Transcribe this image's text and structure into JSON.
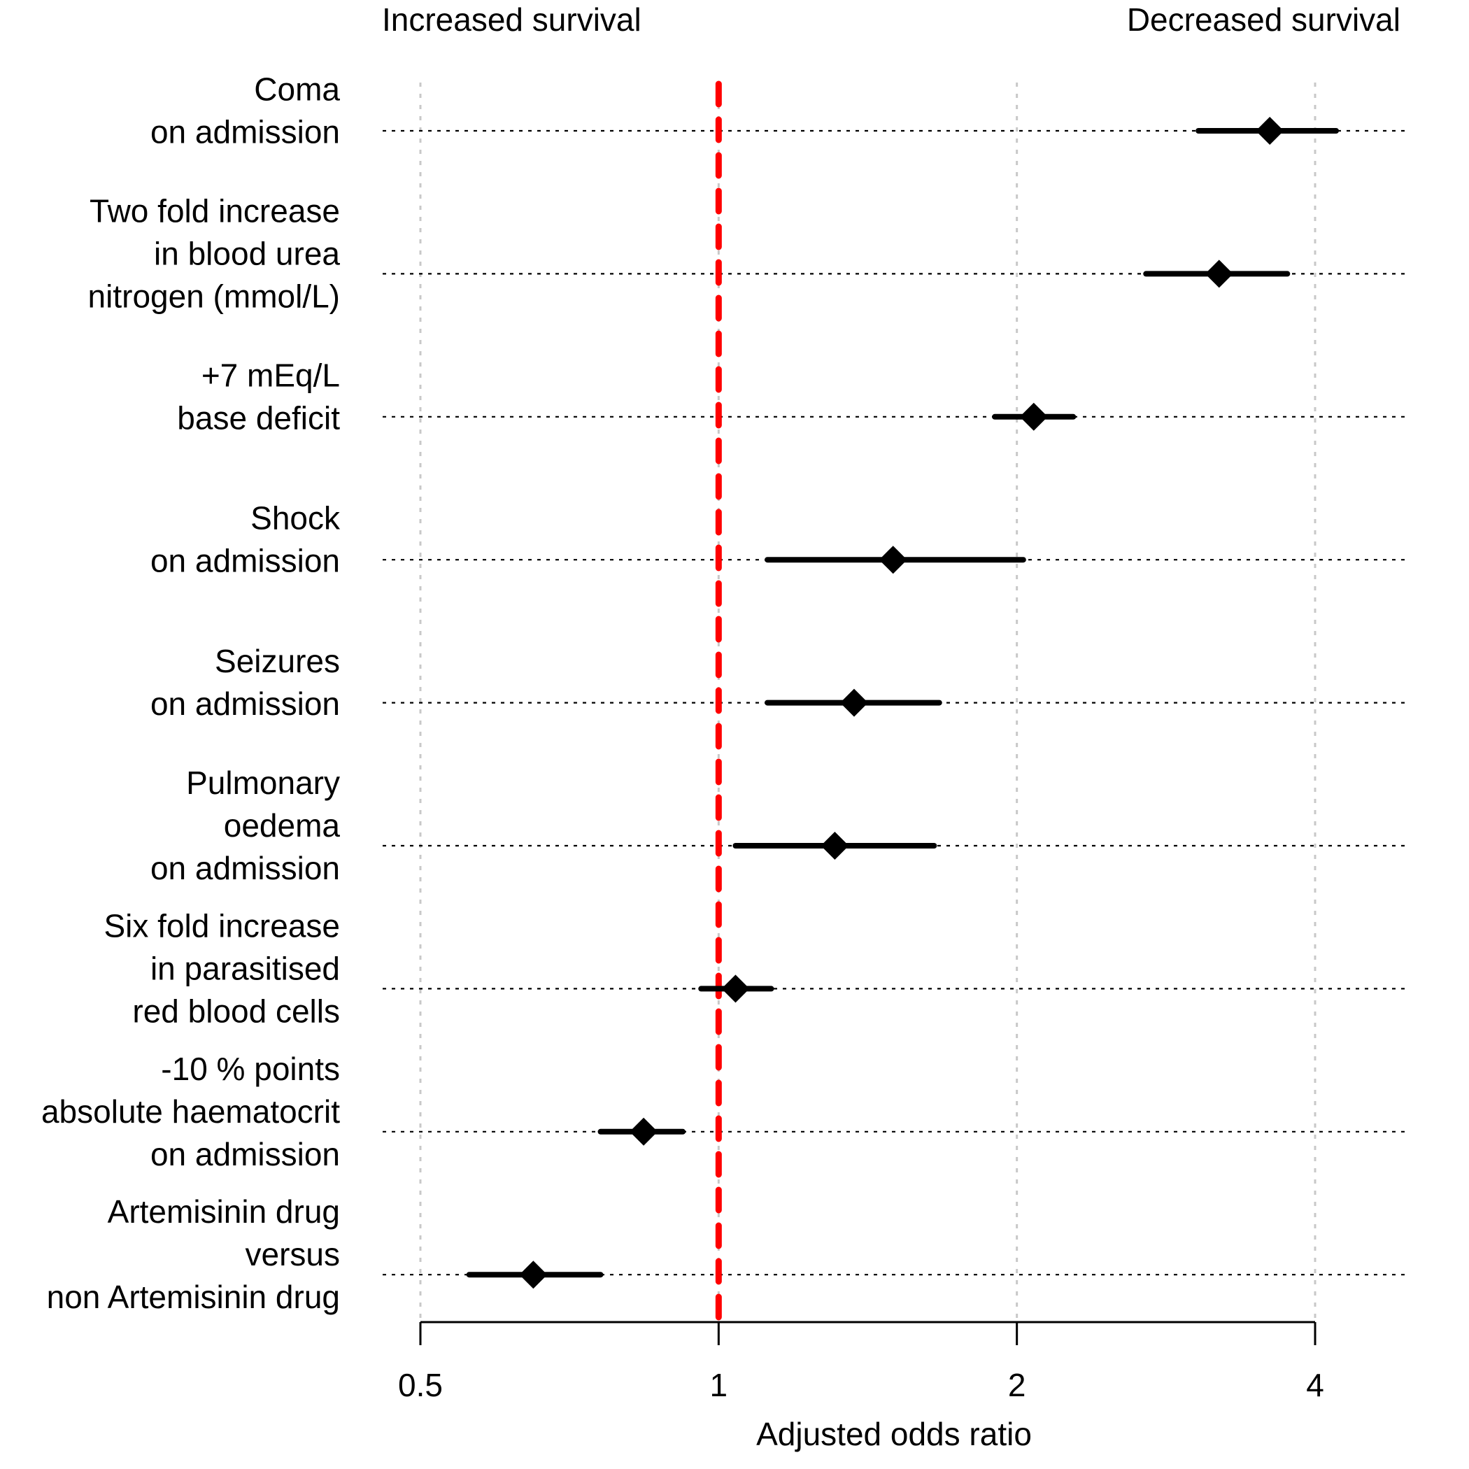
{
  "chart_data": {
    "type": "forest",
    "x_scale": "log",
    "xlabel": "Adjusted odds ratio",
    "xlim": [
      0.5,
      4.8
    ],
    "xticks": [
      0.5,
      1,
      2,
      4
    ],
    "tick_labels": [
      "0.5",
      "1",
      "2",
      "4"
    ],
    "reference_value": 1,
    "reference_line_color": "#ff0000",
    "grid": "dotted vertical at ticks, dotted horizontal per row",
    "annotations": {
      "left": "Increased survival",
      "right": "Decreased survival"
    },
    "rows": [
      {
        "label_lines": [
          "Coma",
          "on admission"
        ],
        "estimate": 3.6,
        "ci_low": 3.05,
        "ci_high": 4.2
      },
      {
        "label_lines": [
          "Two fold increase",
          "in blood urea",
          "nitrogen (mmol/L)"
        ],
        "estimate": 3.2,
        "ci_low": 2.7,
        "ci_high": 3.75
      },
      {
        "label_lines": [
          "+7 mEq/L",
          "base deficit"
        ],
        "estimate": 2.08,
        "ci_low": 1.9,
        "ci_high": 2.28
      },
      {
        "label_lines": [
          "Shock",
          "on admission"
        ],
        "estimate": 1.5,
        "ci_low": 1.12,
        "ci_high": 2.03
      },
      {
        "label_lines": [
          "Seizures",
          "on admission"
        ],
        "estimate": 1.37,
        "ci_low": 1.12,
        "ci_high": 1.67
      },
      {
        "label_lines": [
          "Pulmonary",
          "oedema",
          "on admission"
        ],
        "estimate": 1.31,
        "ci_low": 1.04,
        "ci_high": 1.65
      },
      {
        "label_lines": [
          "Six fold increase",
          "in parasitised",
          "red blood cells"
        ],
        "estimate": 1.04,
        "ci_low": 0.96,
        "ci_high": 1.13
      },
      {
        "label_lines": [
          "-10 % points",
          "absolute haematocrit",
          "on admission"
        ],
        "estimate": 0.84,
        "ci_low": 0.76,
        "ci_high": 0.92
      },
      {
        "label_lines": [
          "Artemisinin drug",
          "versus",
          "non Artemisinin drug"
        ],
        "estimate": 0.65,
        "ci_low": 0.56,
        "ci_high": 0.76
      }
    ]
  }
}
